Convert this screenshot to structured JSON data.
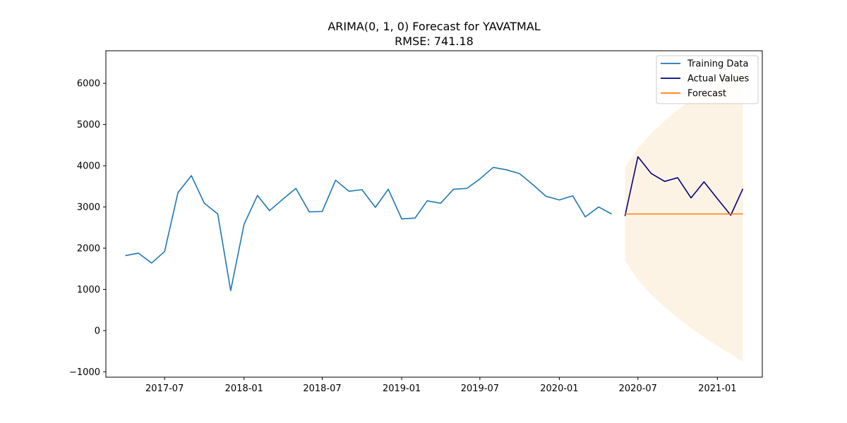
{
  "chart_data": {
    "type": "line",
    "title": "ARIMA(0, 1, 0) Forecast for YAVATMAL",
    "subtitle": "RMSE: 741.18",
    "xlabel": "",
    "ylabel": "",
    "xlim": [
      "2017-02-15",
      "2021-04-15"
    ],
    "ylim": [
      -1130,
      6790
    ],
    "x_ticks": [
      "2017-07-01",
      "2018-01-01",
      "2018-07-01",
      "2019-01-01",
      "2019-07-01",
      "2020-01-01",
      "2020-07-01",
      "2021-01-01"
    ],
    "x_tick_labels": [
      "2017-07",
      "2018-01",
      "2018-07",
      "2019-01",
      "2019-07",
      "2020-01",
      "2020-07",
      "2021-01"
    ],
    "y_ticks": [
      -1000,
      0,
      1000,
      2000,
      3000,
      4000,
      5000,
      6000
    ],
    "y_tick_labels": [
      "−1000",
      "0",
      "1000",
      "2000",
      "3000",
      "4000",
      "5000",
      "6000"
    ],
    "grid": false,
    "legend_position": "top-right",
    "series": [
      {
        "name": "Training Data",
        "color": "#1f77b4",
        "x": [
          "2017-04-01",
          "2017-05-01",
          "2017-06-01",
          "2017-07-01",
          "2017-08-01",
          "2017-09-01",
          "2017-10-01",
          "2017-11-01",
          "2017-12-01",
          "2018-01-01",
          "2018-02-01",
          "2018-03-01",
          "2018-04-01",
          "2018-05-01",
          "2018-06-01",
          "2018-07-01",
          "2018-08-01",
          "2018-09-01",
          "2018-10-01",
          "2018-11-01",
          "2018-12-01",
          "2019-01-01",
          "2019-02-01",
          "2019-03-01",
          "2019-04-01",
          "2019-05-01",
          "2019-06-01",
          "2019-07-01",
          "2019-08-01",
          "2019-09-01",
          "2019-10-01",
          "2019-11-01",
          "2019-12-01",
          "2020-01-01",
          "2020-02-01",
          "2020-03-01",
          "2020-04-01",
          "2020-05-01"
        ],
        "values": [
          1820,
          1880,
          1640,
          1920,
          3350,
          3760,
          3090,
          2830,
          970,
          2580,
          3280,
          2910,
          3190,
          3450,
          2880,
          2890,
          3650,
          3380,
          3420,
          2990,
          3430,
          2710,
          2730,
          3150,
          3090,
          3430,
          3450,
          3680,
          3960,
          3900,
          3810,
          3540,
          3260,
          3170,
          3270,
          2760,
          3000,
          2830
        ]
      },
      {
        "name": "Actual Values",
        "color": "#000080",
        "x": [
          "2020-06-01",
          "2020-07-01",
          "2020-08-01",
          "2020-09-01",
          "2020-10-01",
          "2020-11-01",
          "2020-12-01",
          "2021-01-01",
          "2021-02-01",
          "2021-03-01"
        ],
        "values": [
          2780,
          4220,
          3810,
          3620,
          3710,
          3220,
          3610,
          3200,
          2800,
          3440
        ]
      },
      {
        "name": "Forecast",
        "color": "#ff7f0e",
        "x": [
          "2020-06-01",
          "2021-03-01"
        ],
        "values": [
          2830,
          2830
        ]
      }
    ],
    "confidence_band": {
      "color": "#fdf3e4",
      "x": [
        "2020-06-01",
        "2020-07-01",
        "2020-08-01",
        "2020-09-01",
        "2020-10-01",
        "2020-11-01",
        "2020-12-01",
        "2021-01-01",
        "2021-02-01",
        "2021-03-01"
      ],
      "upper": [
        3960,
        4430,
        4790,
        5090,
        5360,
        5600,
        5820,
        6030,
        6230,
        6420
      ],
      "lower": [
        1700,
        1230,
        870,
        570,
        300,
        60,
        -160,
        -370,
        -570,
        -760
      ]
    }
  }
}
